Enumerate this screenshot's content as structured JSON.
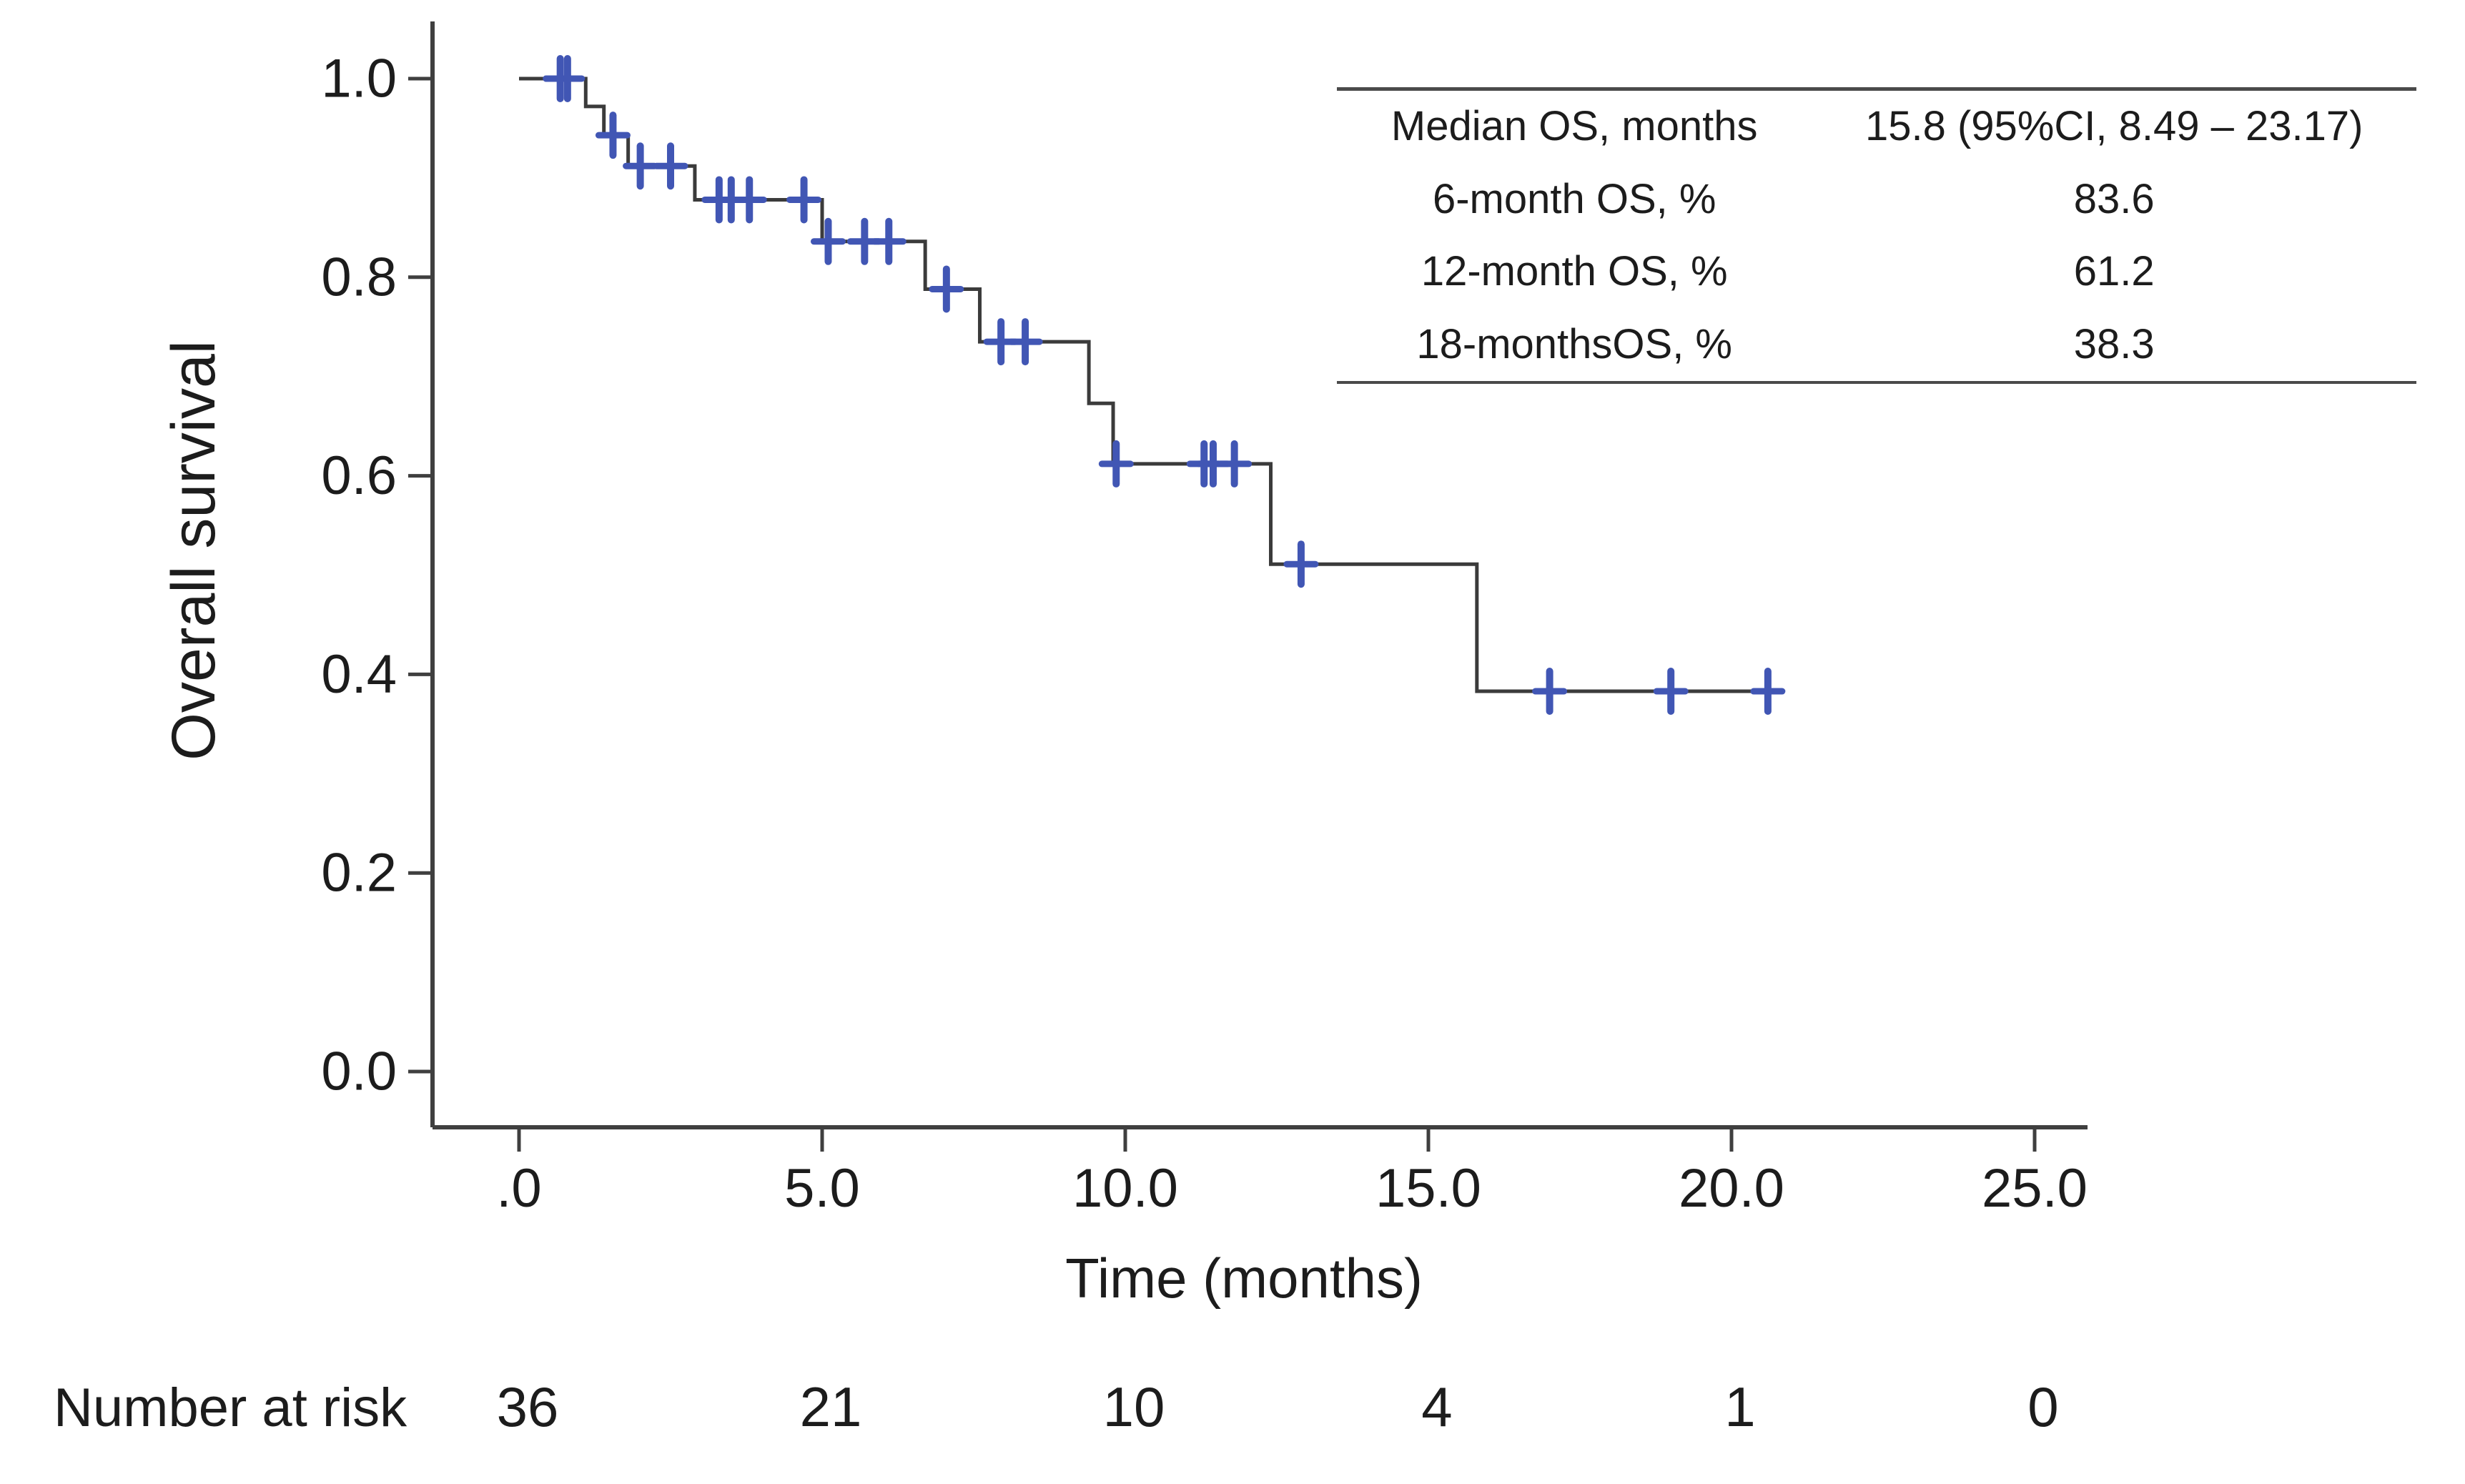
{
  "figure": {
    "background_color": "#ffffff",
    "text_color": "#1c1c1c"
  },
  "risk_row": {
    "label": "Number at risk"
  },
  "stats_table": {
    "rows": [
      {
        "label": "Median OS, months",
        "value": "15.8 (95%CI, 8.49 – 23.17)"
      },
      {
        "label": "6-month OS, %",
        "value": "83.6"
      },
      {
        "label": "12-month OS, %",
        "value": "61.2"
      },
      {
        "label": "18-monthsOS, %",
        "value": "38.3"
      }
    ]
  },
  "chart_data": {
    "type": "line",
    "subtype": "kaplan_meier_step",
    "title": "",
    "xlabel": "Time (months)",
    "ylabel": "Overall survival",
    "xlim": [
      0,
      26
    ],
    "ylim": [
      0,
      1.05
    ],
    "grid": false,
    "legend": "none",
    "x_ticks": {
      "values": [
        0,
        5,
        10,
        15,
        20,
        25
      ],
      "labels": [
        ".0",
        "5.0",
        "10.0",
        "15.0",
        "20.0",
        "25.0"
      ]
    },
    "y_ticks": {
      "values": [
        0.0,
        0.2,
        0.4,
        0.6,
        0.8,
        1.0
      ],
      "labels": [
        "0.0",
        "0.2",
        "0.4",
        "0.6",
        "0.8",
        "1.0"
      ]
    },
    "colors": {
      "curve": "#3b3b3b",
      "censor": "#4156b4",
      "axis": "#3f3f3f",
      "table_rule": "#4a4a4a"
    },
    "series": [
      {
        "name": "Overall survival",
        "steps": [
          {
            "t": 0.0,
            "s": 1.0
          },
          {
            "t": 1.1,
            "s": 0.972
          },
          {
            "t": 1.4,
            "s": 0.943
          },
          {
            "t": 1.8,
            "s": 0.912
          },
          {
            "t": 2.9,
            "s": 0.878
          },
          {
            "t": 5.0,
            "s": 0.836
          },
          {
            "t": 6.7,
            "s": 0.788
          },
          {
            "t": 7.6,
            "s": 0.735
          },
          {
            "t": 9.4,
            "s": 0.673
          },
          {
            "t": 9.8,
            "s": 0.612
          },
          {
            "t": 12.4,
            "s": 0.511
          },
          {
            "t": 15.8,
            "s": 0.383
          }
        ],
        "end_time": 20.7,
        "censors": [
          {
            "t": 0.68,
            "s": 1.0
          },
          {
            "t": 0.8,
            "s": 1.0
          },
          {
            "t": 1.55,
            "s": 0.943
          },
          {
            "t": 2.0,
            "s": 0.912
          },
          {
            "t": 2.5,
            "s": 0.912
          },
          {
            "t": 3.3,
            "s": 0.878
          },
          {
            "t": 3.5,
            "s": 0.878
          },
          {
            "t": 3.8,
            "s": 0.878
          },
          {
            "t": 4.7,
            "s": 0.878
          },
          {
            "t": 5.1,
            "s": 0.836
          },
          {
            "t": 5.7,
            "s": 0.836
          },
          {
            "t": 6.1,
            "s": 0.836
          },
          {
            "t": 7.05,
            "s": 0.788
          },
          {
            "t": 7.95,
            "s": 0.735
          },
          {
            "t": 8.35,
            "s": 0.735
          },
          {
            "t": 9.85,
            "s": 0.612
          },
          {
            "t": 11.3,
            "s": 0.612
          },
          {
            "t": 11.45,
            "s": 0.612
          },
          {
            "t": 11.8,
            "s": 0.612
          },
          {
            "t": 12.9,
            "s": 0.511
          },
          {
            "t": 17.0,
            "s": 0.383
          },
          {
            "t": 19.0,
            "s": 0.383
          },
          {
            "t": 20.6,
            "s": 0.383
          }
        ]
      }
    ],
    "number_at_risk": {
      "times": [
        0,
        5,
        10,
        15,
        20,
        25
      ],
      "counts": [
        "36",
        "21",
        "10",
        "4",
        "1",
        "0"
      ]
    }
  }
}
